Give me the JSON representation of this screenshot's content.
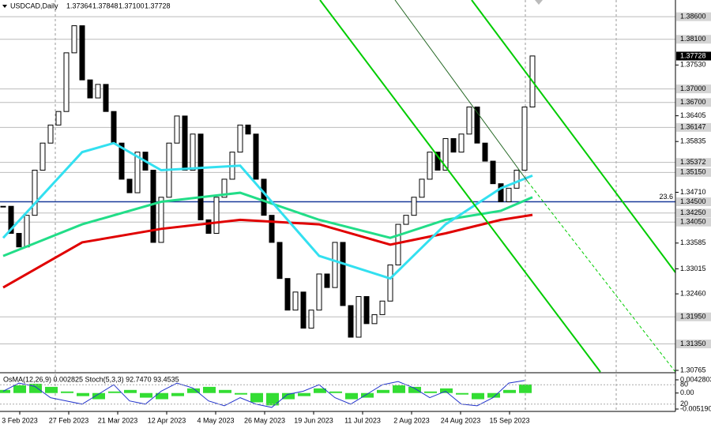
{
  "header": {
    "symbol": "USDCAD,Daily",
    "ohlc": [
      "1.37364",
      "1.37848",
      "1.37100",
      "1.37728"
    ]
  },
  "chart_data": [
    {
      "type": "candlestick",
      "close": [
        1.344,
        1.338,
        1.335,
        1.342,
        1.352,
        1.358,
        1.362,
        1.365,
        1.378,
        1.384,
        1.372,
        1.368,
        1.371,
        1.365,
        1.358,
        1.35,
        1.347,
        1.356,
        1.352,
        1.336,
        1.346,
        1.358,
        1.364,
        1.352,
        1.36,
        1.341,
        1.338,
        1.346,
        1.35,
        1.356,
        1.362,
        1.36,
        1.35,
        1.342,
        1.336,
        1.328,
        1.321,
        1.325,
        1.317,
        1.321,
        1.329,
        1.326,
        1.336,
        1.322,
        1.315,
        1.324,
        1.318,
        1.32,
        1.323,
        1.331,
        1.34,
        1.342,
        1.346,
        1.35,
        1.356,
        1.352,
        1.359,
        1.356,
        1.36,
        1.366,
        1.358,
        1.354,
        1.349,
        1.345,
        1.348,
        1.352,
        1.366,
        1.3773
      ],
      "ylim": [
        1.3073,
        1.3897
      ],
      "yticks": [
        {
          "value": 1.3753,
          "label": "1.37530"
        },
        {
          "value": 1.36405,
          "label": "1.36405"
        },
        {
          "value": 1.35835,
          "label": "1.35835"
        },
        {
          "value": 1.3471,
          "label": "1.34710"
        },
        {
          "value": 1.33585,
          "label": "1.33585"
        },
        {
          "value": 1.33015,
          "label": "1.33015"
        },
        {
          "value": 1.3246,
          "label": "1.32460"
        },
        {
          "value": 1.30765,
          "label": "1.30765"
        }
      ],
      "levels": [
        {
          "value": 1.386,
          "label": "1.38600"
        },
        {
          "value": 1.381,
          "label": "1.38100"
        },
        {
          "value": 1.37,
          "label": "1.37000"
        },
        {
          "value": 1.367,
          "label": "1.36700"
        },
        {
          "value": 1.36147,
          "label": "1.36147"
        },
        {
          "value": 1.35372,
          "label": "1.35372"
        },
        {
          "value": 1.3515,
          "label": "1.35150"
        },
        {
          "value": 1.345,
          "label": "1.34500",
          "color": "#1a3a9a"
        },
        {
          "value": 1.3425,
          "label": "1.34250"
        },
        {
          "value": 1.3405,
          "label": "1.34050"
        },
        {
          "value": 1.3195,
          "label": "1.31950"
        },
        {
          "value": 1.3135,
          "label": "1.31350"
        }
      ],
      "last": {
        "value": 1.37728,
        "label": "1.37728"
      },
      "fib_label": "23.6",
      "x_labels": [
        "3 Feb 2023",
        "27 Feb 2023",
        "21 Mar 2023",
        "12 Apr 2023",
        "4 May 2023",
        "26 May 2023",
        "19 Jun 2023",
        "11 Jul 2023",
        "2 Aug 2023",
        "24 Aug 2023",
        "15 Sep 2023"
      ],
      "series": [
        {
          "color": "#e00000",
          "x": [
            0,
            10,
            20,
            30,
            40,
            49,
            56,
            63,
            67
          ],
          "values": [
            1.326,
            1.336,
            1.339,
            1.341,
            1.34,
            1.3355,
            1.338,
            1.341,
            1.3421
          ]
        },
        {
          "color": "#22dd88",
          "x": [
            0,
            10,
            20,
            30,
            40,
            49,
            56,
            63,
            67
          ],
          "values": [
            1.333,
            1.34,
            1.345,
            1.347,
            1.341,
            1.337,
            1.341,
            1.343,
            1.346
          ]
        },
        {
          "color": "#33e0f0",
          "x": [
            0,
            10,
            14,
            20,
            30,
            40,
            49,
            56,
            63,
            67
          ],
          "values": [
            1.337,
            1.356,
            1.358,
            1.352,
            1.353,
            1.333,
            1.328,
            1.34,
            1.348,
            1.3508
          ]
        }
      ]
    },
    {
      "type": "oscillator",
      "title": "OsMA(12,26,9) 0.002825 Stoch(5,3,3) 92.7470 93.4535",
      "osma": [
        0.001,
        0.0025,
        0.003,
        0.002,
        0.0005,
        -0.001,
        -0.002,
        0.0005,
        0.001,
        -0.0015,
        -0.002,
        -0.001,
        0.0015,
        0.002,
        0.001,
        -0.0005,
        -0.003,
        -0.004,
        -0.002,
        -0.001,
        0.0015,
        0.0005,
        -0.002,
        -0.0015,
        0.001,
        0.0025,
        0.002,
        0.0005,
        0.0015,
        -0.0005,
        -0.002,
        -0.0015,
        0.001,
        0.0028
      ],
      "stoch": [
        60,
        85,
        75,
        40,
        30,
        20,
        50,
        80,
        30,
        20,
        60,
        85,
        70,
        30,
        15,
        40,
        20,
        10,
        50,
        60,
        80,
        40,
        20,
        50,
        80,
        90,
        70,
        40,
        60,
        20,
        15,
        40,
        85,
        93
      ],
      "ylim": [
        -0.0051905,
        0.0042803
      ],
      "yticks": [
        0.0042803,
        {
          "value": 0,
          "label": "0.00"
        },
        -0.0051905
      ],
      "stoch_lim": [
        0,
        100
      ],
      "stoch_ticks": [
        80,
        20
      ]
    }
  ]
}
